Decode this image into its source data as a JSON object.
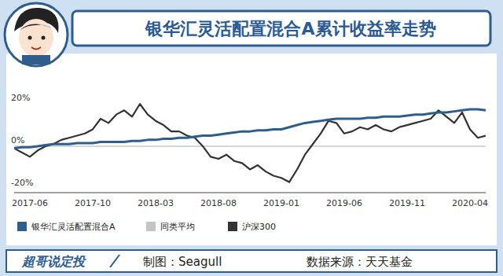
{
  "chart_data": {
    "type": "line",
    "title": "银华汇灵活配置混合A累计收益率走势",
    "categories": [
      null,
      null,
      "2017-06",
      null,
      null,
      null,
      null,
      null,
      null,
      null,
      "2017-10",
      null,
      null,
      null,
      null,
      null,
      null,
      null,
      "2018-03",
      null,
      null,
      null,
      null,
      null,
      null,
      null,
      "2018-08",
      null,
      null,
      null,
      null,
      null,
      null,
      null,
      "2019-01",
      null,
      null,
      null,
      null,
      null,
      null,
      null,
      "2019-06",
      null,
      null,
      null,
      null,
      null,
      null,
      null,
      "2019-11",
      null,
      null,
      null,
      null,
      null,
      null,
      null,
      "2020-04",
      null,
      null
    ],
    "series": [
      {
        "name": "银华汇灵活配置混合A",
        "color": "#2f5e8c",
        "values": [
          -1,
          -0.5,
          -0.5,
          0,
          0.5,
          1,
          1,
          1,
          1.5,
          1.5,
          1.5,
          2,
          2,
          2,
          2,
          2.5,
          2.5,
          3,
          3,
          3.5,
          3.5,
          4,
          4,
          4.5,
          5,
          5,
          5.5,
          6,
          6.5,
          7,
          7,
          7.5,
          7.5,
          8,
          8,
          9,
          10,
          11,
          11.5,
          12,
          12.5,
          13,
          13,
          13,
          13,
          13.5,
          13.5,
          14,
          14,
          14,
          14.5,
          15,
          15,
          15.5,
          16,
          16,
          16.5,
          17,
          17.5,
          17.5,
          17
        ]
      },
      {
        "name": "同类平均",
        "color": "#c4c4c4",
        "values": [
          null,
          null,
          null,
          null,
          null,
          null,
          null,
          null,
          null,
          null,
          null,
          null,
          null,
          null,
          null,
          null,
          null,
          null,
          null,
          null,
          null,
          null,
          null,
          null,
          null,
          null,
          null,
          null,
          null,
          null,
          null,
          null,
          null,
          null,
          null,
          null,
          null,
          null,
          null,
          null,
          null,
          null,
          null,
          null,
          null,
          null,
          null,
          null,
          null,
          null,
          null,
          null,
          null,
          null,
          null,
          null,
          null,
          null,
          null,
          null,
          null
        ]
      },
      {
        "name": "沪深300",
        "color": "#333333",
        "values": [
          -1,
          -3,
          -5,
          -2,
          0,
          1,
          3,
          4,
          5,
          6,
          8,
          13,
          11,
          15,
          17,
          14,
          20,
          15,
          12,
          10,
          7,
          7,
          5,
          4,
          0,
          -5,
          -6,
          -4,
          -7,
          -8,
          -11,
          -9,
          -12,
          -14,
          -15,
          -17,
          -11,
          -4,
          1,
          6,
          12,
          11,
          6,
          7,
          9,
          8,
          10,
          8,
          7,
          9,
          10,
          11,
          12,
          13,
          17,
          14,
          11,
          16,
          8,
          4,
          5
        ]
      }
    ],
    "ylim": [
      -22,
      32
    ],
    "yticks": [
      {
        "value": 20,
        "label": "20%"
      },
      {
        "value": 0,
        "label": "0%"
      },
      {
        "value": -20,
        "label": "-20%"
      }
    ],
    "grid": false,
    "legend": "bottom"
  },
  "footer": {
    "brand": "超哥说定投",
    "credit": "制图：Seagull",
    "source": "数据来源：天天基金"
  }
}
